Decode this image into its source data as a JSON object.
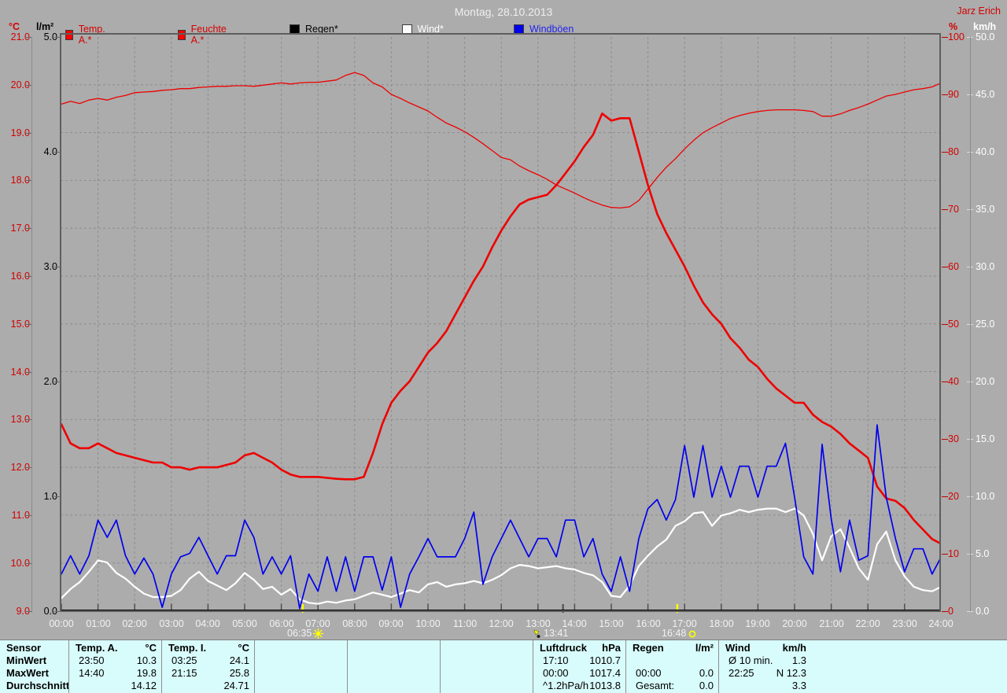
{
  "chart": {
    "title": "Montag, 28.10.2013",
    "author": "Jarz Erich",
    "legend": [
      {
        "label": "Temp. A.*",
        "swatch": "#ff0000",
        "text": "#d40000"
      },
      {
        "label": "Feuchte A.*",
        "swatch": "#ff0000",
        "text": "#d40000"
      },
      {
        "label": "Regen*",
        "swatch": "#000000",
        "text": "#000000"
      },
      {
        "label": "Wind*",
        "swatch": "#ffffff",
        "text": "#ffffff"
      },
      {
        "label": "Windböen",
        "swatch": "#0000ee",
        "text": "#2222ee"
      }
    ],
    "axes": {
      "temp": {
        "unit": "°C",
        "min": 9,
        "max": 21,
        "step": 1,
        "color": "#d40000",
        "side": "left"
      },
      "rain": {
        "unit": "l/m²",
        "min": 0,
        "max": 5,
        "step": 1,
        "color": "#000000",
        "side": "left"
      },
      "humidity": {
        "unit": "%",
        "min": 0,
        "max": 100,
        "step": 10,
        "color": "#d40000",
        "side": "right"
      },
      "wind": {
        "unit": "km/h",
        "min": 0,
        "max": 50,
        "step": 5,
        "color": "#ffffff",
        "side": "right"
      }
    },
    "x_ticks": [
      "00:00",
      "01:00",
      "02:00",
      "03:00",
      "04:00",
      "05:00",
      "06:00",
      "07:00",
      "08:00",
      "09:00",
      "10:00",
      "11:00",
      "12:00",
      "13:00",
      "14:00",
      "15:00",
      "16:00",
      "17:00",
      "18:00",
      "19:00",
      "20:00",
      "21:00",
      "22:00",
      "23:00",
      "24:00"
    ],
    "sun_markers": [
      {
        "time": "06:35",
        "t": 6.583,
        "icon": "sunrise-icon"
      },
      {
        "time": "13:41",
        "t": 13.683,
        "icon": "moon-marker-icon"
      },
      {
        "time": "16:48",
        "t": 16.8,
        "icon": "sunset-icon"
      }
    ]
  },
  "chart_data": {
    "type": "line",
    "title": "Montag, 28.10.2013",
    "x_range_hours": [
      0,
      24
    ],
    "time_step_h": 0.25,
    "grid": {
      "vertical_every_h": 1,
      "horizontal_axis": "temp",
      "horizontal_every": 1
    },
    "series": [
      {
        "name": "Temp. A.*",
        "axis": "temp",
        "color": "#ee0000",
        "width": 2.6,
        "values": [
          12.9,
          12.5,
          12.4,
          12.4,
          12.5,
          12.4,
          12.3,
          12.25,
          12.2,
          12.15,
          12.1,
          12.1,
          12.0,
          12.0,
          11.95,
          12.0,
          12.0,
          12.0,
          12.05,
          12.1,
          12.25,
          12.3,
          12.2,
          12.1,
          11.95,
          11.85,
          11.8,
          11.8,
          11.8,
          11.78,
          11.76,
          11.75,
          11.75,
          11.8,
          12.3,
          12.9,
          13.35,
          13.6,
          13.8,
          14.1,
          14.4,
          14.6,
          14.85,
          15.2,
          15.55,
          15.9,
          16.2,
          16.6,
          16.95,
          17.25,
          17.5,
          17.6,
          17.65,
          17.7,
          17.9,
          18.15,
          18.4,
          18.7,
          18.95,
          19.4,
          19.25,
          19.3,
          19.3,
          18.6,
          17.9,
          17.3,
          16.9,
          16.55,
          16.2,
          15.8,
          15.45,
          15.2,
          15.0,
          14.7,
          14.5,
          14.25,
          14.1,
          13.85,
          13.65,
          13.5,
          13.35,
          13.35,
          13.1,
          12.95,
          12.85,
          12.7,
          12.5,
          12.35,
          12.2,
          11.6,
          11.35,
          11.3,
          11.15,
          10.9,
          10.7,
          10.5,
          10.4
        ]
      },
      {
        "name": "Feuchte A.*",
        "axis": "humidity",
        "color": "#ee0000",
        "width": 1.3,
        "values": [
          88.3,
          88.8,
          88.4,
          89.0,
          89.3,
          89.0,
          89.5,
          89.8,
          90.3,
          90.4,
          90.5,
          90.7,
          90.8,
          91.0,
          91.0,
          91.2,
          91.3,
          91.4,
          91.4,
          91.5,
          91.5,
          91.4,
          91.6,
          91.8,
          92.0,
          91.8,
          92.0,
          92.1,
          92.1,
          92.3,
          92.5,
          93.3,
          93.8,
          93.3,
          92.0,
          91.3,
          90.0,
          89.3,
          88.5,
          87.8,
          87.1,
          86.0,
          85.0,
          84.3,
          83.5,
          82.5,
          81.4,
          80.2,
          79.0,
          78.6,
          77.5,
          76.7,
          76.0,
          75.2,
          74.2,
          73.5,
          72.8,
          72.0,
          71.3,
          70.7,
          70.3,
          70.2,
          70.4,
          71.5,
          73.5,
          75.5,
          77.3,
          78.8,
          80.5,
          82.0,
          83.3,
          84.2,
          85.0,
          85.8,
          86.3,
          86.7,
          87.0,
          87.2,
          87.3,
          87.3,
          87.3,
          87.2,
          87.0,
          86.2,
          86.2,
          86.6,
          87.2,
          87.7,
          88.3,
          89.0,
          89.7,
          90.0,
          90.4,
          90.8,
          91.0,
          91.3,
          92.0
        ]
      },
      {
        "name": "Regen*",
        "axis": "rain",
        "color": "#000000",
        "width": 2,
        "x": [
          0,
          24
        ],
        "values": [
          0.0,
          0.0
        ]
      },
      {
        "name": "Wind*",
        "axis": "wind",
        "color": "#ffffff",
        "width": 2.2,
        "values": [
          1.1,
          1.9,
          2.5,
          3.4,
          4.4,
          4.2,
          3.3,
          2.8,
          2.1,
          1.5,
          1.2,
          1.2,
          1.3,
          1.8,
          2.8,
          3.4,
          2.6,
          2.2,
          1.8,
          2.4,
          3.3,
          2.7,
          1.9,
          2.1,
          1.4,
          1.9,
          1.0,
          0.7,
          0.6,
          0.8,
          0.7,
          0.9,
          1.0,
          1.3,
          1.6,
          1.4,
          1.2,
          1.5,
          1.8,
          1.6,
          2.3,
          2.5,
          2.1,
          2.3,
          2.4,
          2.6,
          2.4,
          2.7,
          3.1,
          3.7,
          4.0,
          3.9,
          3.7,
          3.8,
          3.9,
          3.7,
          3.6,
          3.3,
          3.1,
          2.5,
          1.3,
          1.2,
          2.2,
          3.9,
          4.8,
          5.6,
          6.2,
          7.4,
          7.8,
          8.5,
          8.6,
          7.4,
          8.3,
          8.5,
          8.8,
          8.6,
          8.8,
          8.9,
          8.9,
          8.6,
          8.9,
          8.3,
          6.7,
          4.4,
          6.5,
          7.1,
          5.5,
          3.7,
          2.7,
          5.8,
          6.9,
          4.4,
          3.0,
          2.1,
          1.8,
          1.7,
          2.1
        ]
      },
      {
        "name": "Windböen",
        "axis": "wind",
        "color": "#0000ee",
        "width": 1.7,
        "values": [
          3.2,
          4.8,
          3.2,
          4.8,
          7.9,
          6.4,
          7.9,
          4.8,
          3.2,
          4.6,
          3.2,
          0.3,
          3.2,
          4.7,
          5.0,
          6.4,
          4.8,
          3.2,
          4.8,
          4.8,
          7.9,
          6.4,
          3.2,
          4.7,
          3.2,
          4.8,
          0.2,
          3.2,
          1.7,
          4.7,
          1.7,
          4.7,
          1.7,
          4.7,
          4.7,
          1.8,
          4.7,
          0.3,
          3.2,
          4.7,
          6.3,
          4.7,
          4.7,
          4.7,
          6.3,
          8.6,
          2.3,
          4.7,
          6.3,
          7.9,
          6.3,
          4.7,
          6.3,
          6.3,
          4.7,
          7.9,
          7.9,
          4.7,
          6.3,
          3.2,
          1.7,
          4.7,
          1.7,
          6.3,
          8.9,
          9.7,
          7.9,
          9.7,
          14.4,
          9.9,
          14.4,
          9.9,
          12.6,
          9.9,
          12.6,
          12.6,
          9.9,
          12.6,
          12.6,
          14.6,
          9.9,
          4.7,
          3.2,
          14.5,
          8.0,
          3.4,
          7.9,
          4.4,
          4.8,
          16.2,
          9.9,
          6.3,
          3.4,
          5.4,
          5.4,
          3.2,
          4.7
        ]
      }
    ],
    "annotations": [
      {
        "time": "06:35",
        "type": "sunrise"
      },
      {
        "time": "13:41",
        "type": "moon"
      },
      {
        "time": "16:48",
        "type": "sunset"
      }
    ]
  },
  "table": {
    "row_labels": [
      "Sensor",
      "MinWert",
      "MaxWert",
      "Durchschnitt"
    ],
    "columns": [
      {
        "h1": "Temp. A.",
        "h2": "°C",
        "rows": [
          [
            "23:50",
            "10.3"
          ],
          [
            "14:40",
            "19.8"
          ],
          [
            "",
            "14.12"
          ]
        ]
      },
      {
        "h1": "Temp. I.",
        "h2": "°C",
        "rows": [
          [
            "03:25",
            "24.1"
          ],
          [
            "21:15",
            "25.8"
          ],
          [
            "",
            "24.71"
          ]
        ]
      },
      {
        "h1": "",
        "h2": "",
        "rows": [
          [
            "",
            ""
          ],
          [
            "",
            ""
          ],
          [
            "",
            ""
          ]
        ]
      },
      {
        "h1": "",
        "h2": "",
        "rows": [
          [
            "",
            ""
          ],
          [
            "",
            ""
          ],
          [
            "",
            ""
          ]
        ]
      },
      {
        "h1": "",
        "h2": "",
        "rows": [
          [
            "",
            ""
          ],
          [
            "",
            ""
          ],
          [
            "",
            ""
          ]
        ]
      },
      {
        "h1": "Luftdruck",
        "h2": "hPa",
        "rows": [
          [
            "17:10",
            "1010.7"
          ],
          [
            "00:00",
            "1017.4"
          ],
          [
            "^1.2hPa/h",
            "1013.8"
          ]
        ]
      },
      {
        "h1": "Regen",
        "h2": "l/m²",
        "rows": [
          [
            "",
            ""
          ],
          [
            "00:00",
            "0.0"
          ],
          [
            "Gesamt:",
            "0.0"
          ]
        ]
      },
      {
        "h1": "Wind",
        "h2": "km/h",
        "rows": [
          [
            "Ø 10 min.",
            "1.3"
          ],
          [
            "22:25",
            "N 12.3"
          ],
          [
            "",
            "3.3"
          ]
        ]
      }
    ]
  },
  "colors": {
    "background": "#acacac",
    "grid": "#8d8d8d",
    "frame": "#5e5e5e",
    "axis_black": "#000000",
    "red": "#d40000",
    "white": "#ffffff",
    "blue": "#0000ee",
    "yellow": "#ffff00",
    "table_bg": "#d8fbfb"
  }
}
